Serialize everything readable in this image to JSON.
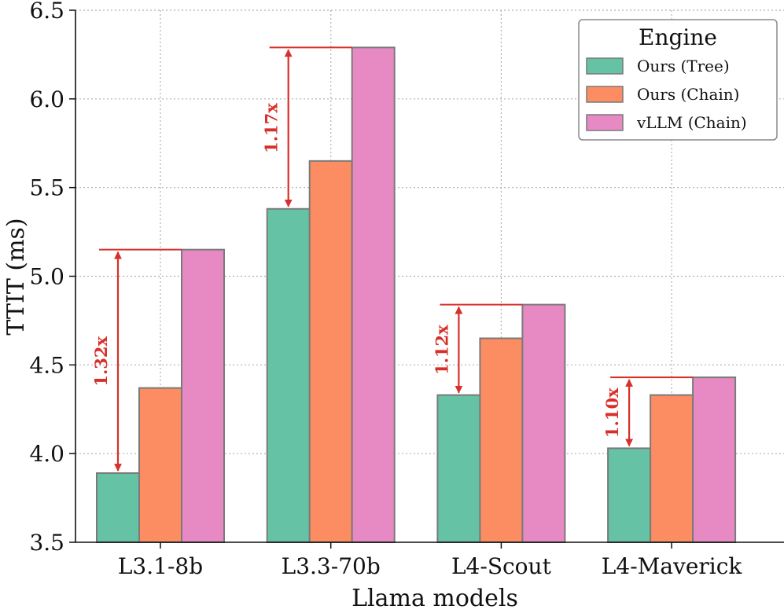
{
  "chart_data": {
    "type": "bar",
    "title": "",
    "xlabel": "Llama models",
    "ylabel": "TTIT (ms)",
    "ylim": [
      3.5,
      6.5
    ],
    "yticks": [
      "3.5",
      "4.0",
      "4.5",
      "5.0",
      "5.5",
      "6.0",
      "6.5"
    ],
    "grid": true,
    "categories": [
      "L3.1-8b",
      "L3.3-70b",
      "L4-Scout",
      "L4-Maverick"
    ],
    "series": [
      {
        "name": "Ours (Tree)",
        "color": "#66c2a5",
        "values": [
          3.89,
          5.38,
          4.33,
          4.03
        ]
      },
      {
        "name": "Ours (Chain)",
        "color": "#fc8d62",
        "values": [
          4.37,
          5.65,
          4.65,
          4.33
        ]
      },
      {
        "name": "vLLM (Chain)",
        "color": "#e78ac3",
        "values": [
          5.15,
          6.29,
          4.84,
          4.43
        ]
      }
    ],
    "legend": {
      "title": "Engine",
      "position": "top-right"
    },
    "annotations": [
      {
        "category": "L3.1-8b",
        "label": "1.32x"
      },
      {
        "category": "L3.3-70b",
        "label": "1.17x"
      },
      {
        "category": "L4-Scout",
        "label": "1.12x"
      },
      {
        "category": "L4-Maverick",
        "label": "1.10x"
      }
    ],
    "annotation_color": "#d7302a"
  }
}
